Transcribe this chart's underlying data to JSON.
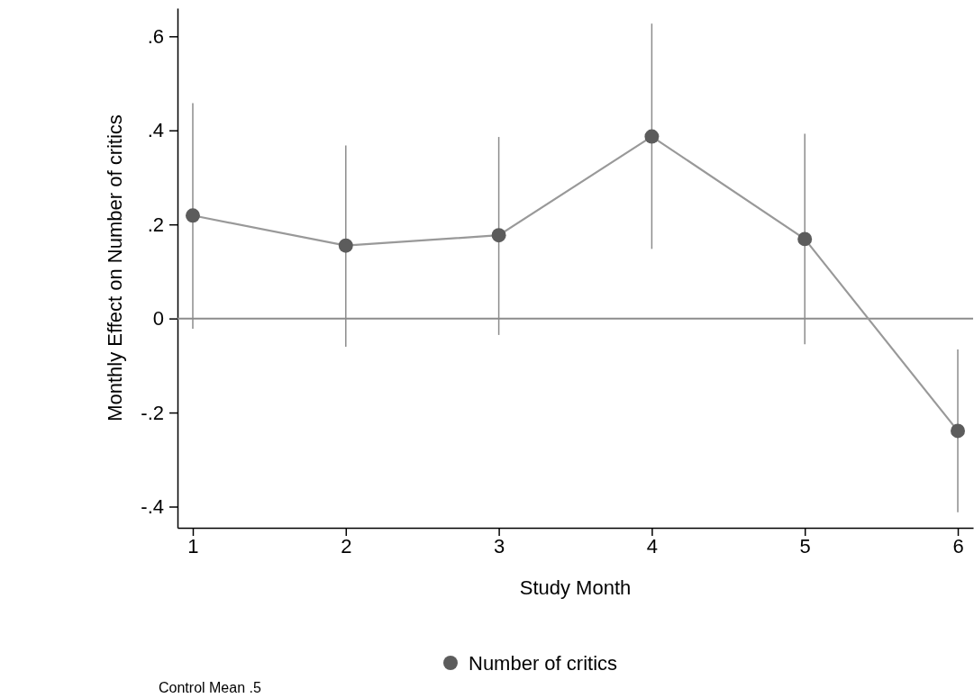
{
  "chart_data": {
    "type": "line",
    "xlabel": "Study Month",
    "ylabel": "Monthly Effect on Number of critics",
    "x": [
      1,
      2,
      3,
      4,
      5,
      6
    ],
    "series": [
      {
        "name": "Number of critics",
        "color": "#5c5c5c",
        "values": [
          0.219,
          0.155,
          0.177,
          0.387,
          0.169,
          -0.239
        ],
        "errors": [
          [
            -0.022,
            0.458
          ],
          [
            -0.06,
            0.368
          ],
          [
            -0.035,
            0.386
          ],
          [
            0.148,
            0.627
          ],
          [
            -0.055,
            0.393
          ],
          [
            -0.412,
            -0.066
          ]
        ]
      }
    ],
    "xlim": [
      0.9,
      6.1
    ],
    "xticks": [
      1,
      2,
      3,
      4,
      5,
      6
    ],
    "ylim": [
      -0.445,
      0.66
    ],
    "yticks": [
      {
        "value": -0.4,
        "label": "-.4"
      },
      {
        "value": -0.2,
        "label": "-.2"
      },
      0,
      {
        "value": 0.2,
        "label": ".2"
      },
      {
        "value": 0.4,
        "label": ".4"
      },
      {
        "value": 0.6,
        "label": ".6"
      }
    ],
    "ref_lines": [
      {
        "axis": "y",
        "value": 0,
        "color": "#8c8c8c"
      }
    ],
    "annotations": [
      "Control Mean .5"
    ],
    "marker": "circle",
    "legend": "bottom",
    "grid": false
  }
}
